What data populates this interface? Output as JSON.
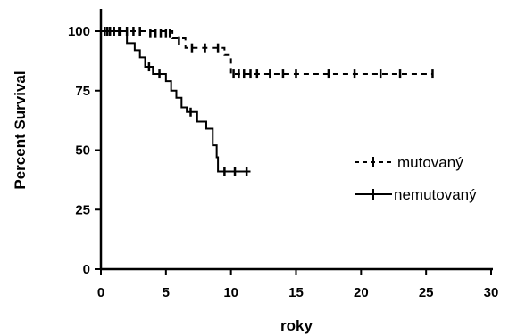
{
  "chart_data": {
    "type": "line",
    "title": "",
    "xlabel": "roky",
    "ylabel": "Percent Survival",
    "xlim": [
      0,
      30
    ],
    "ylim": [
      0,
      110
    ],
    "x_ticks": [
      "0",
      "5",
      "10",
      "15",
      "20",
      "25",
      "30"
    ],
    "y_ticks": [
      "0",
      "25",
      "50",
      "75",
      "100"
    ],
    "grid": false,
    "legend_position": "right",
    "series": [
      {
        "name": "mutovaný",
        "style": "dashed",
        "steps": [
          [
            0,
            100
          ],
          [
            3.5,
            100
          ],
          [
            5.5,
            97
          ],
          [
            6.5,
            93
          ],
          [
            9.5,
            90
          ],
          [
            10,
            82
          ],
          [
            25.5,
            82
          ]
        ],
        "censor_marks": [
          [
            0.3,
            100
          ],
          [
            0.7,
            100
          ],
          [
            1.0,
            100
          ],
          [
            1.5,
            100
          ],
          [
            2.0,
            100
          ],
          [
            2.5,
            100
          ],
          [
            3.0,
            100
          ],
          [
            3.8,
            99
          ],
          [
            4.2,
            99
          ],
          [
            4.6,
            99
          ],
          [
            5.0,
            99
          ],
          [
            5.3,
            99
          ],
          [
            6.0,
            96
          ],
          [
            7.0,
            93
          ],
          [
            8.0,
            93
          ],
          [
            9.0,
            93
          ],
          [
            10.2,
            82
          ],
          [
            10.6,
            82
          ],
          [
            11.0,
            82
          ],
          [
            11.5,
            82
          ],
          [
            12.0,
            82
          ],
          [
            13.0,
            82
          ],
          [
            14.0,
            82
          ],
          [
            15.0,
            82
          ],
          [
            17.5,
            82
          ],
          [
            19.5,
            82
          ],
          [
            21.5,
            82
          ],
          [
            23.0,
            82
          ],
          [
            25.5,
            82
          ]
        ]
      },
      {
        "name": "nemutovaný",
        "style": "solid",
        "steps": [
          [
            0,
            100
          ],
          [
            1.8,
            100
          ],
          [
            2.0,
            95
          ],
          [
            2.6,
            92
          ],
          [
            3.0,
            89
          ],
          [
            3.4,
            85
          ],
          [
            4.0,
            82
          ],
          [
            5.0,
            79
          ],
          [
            5.4,
            75
          ],
          [
            5.8,
            72
          ],
          [
            6.2,
            68
          ],
          [
            6.6,
            66
          ],
          [
            7.4,
            62
          ],
          [
            8.1,
            59
          ],
          [
            8.6,
            52
          ],
          [
            8.9,
            47
          ],
          [
            9.0,
            41
          ],
          [
            11.5,
            41
          ]
        ],
        "censor_marks": [
          [
            0.5,
            100
          ],
          [
            1.0,
            100
          ],
          [
            1.4,
            100
          ],
          [
            3.7,
            85
          ],
          [
            4.5,
            82
          ],
          [
            6.9,
            66
          ],
          [
            9.5,
            41
          ],
          [
            10.3,
            41
          ],
          [
            11.2,
            41
          ]
        ]
      }
    ]
  }
}
